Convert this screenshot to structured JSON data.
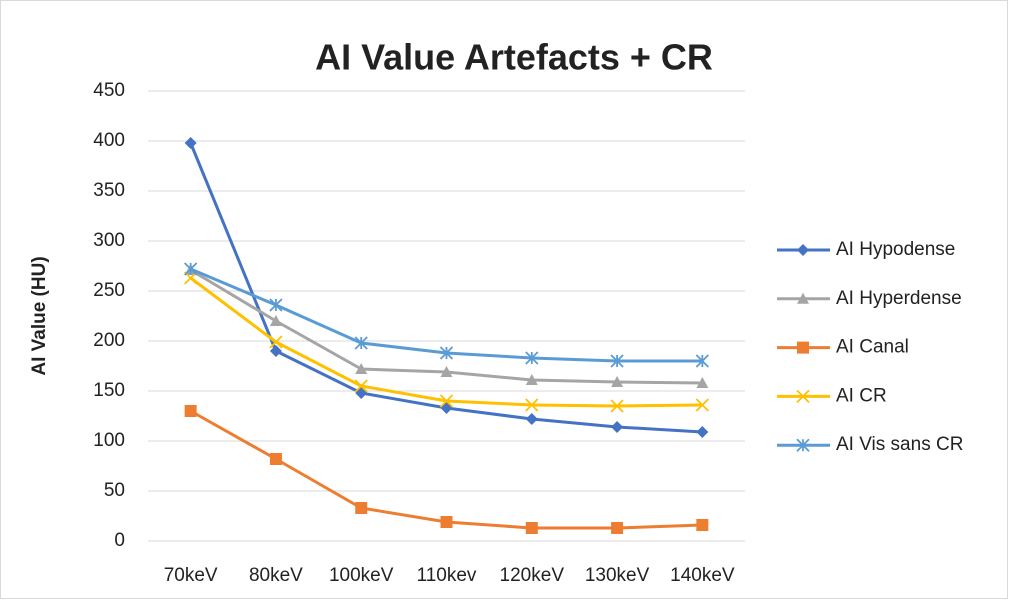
{
  "chart_data": {
    "type": "line",
    "title": "AI Value Artefacts + CR",
    "y_label": "AI Value (HU)",
    "categories": [
      "70keV",
      "80keV",
      "100keV",
      "110kev",
      "120keV",
      "130keV",
      "140keV"
    ],
    "series": [
      {
        "name": "AI Hypodense",
        "color": "#4472c4",
        "marker": "diamond",
        "values": [
          398,
          190,
          148,
          133,
          122,
          114,
          109
        ]
      },
      {
        "name": "AI Hyperdense",
        "color": "#a5a5a5",
        "marker": "triangle",
        "values": [
          271,
          220,
          172,
          169,
          161,
          159,
          158
        ]
      },
      {
        "name": "AI Canal",
        "color": "#ed7d31",
        "marker": "square",
        "values": [
          130,
          82,
          33,
          19,
          13,
          13,
          16
        ]
      },
      {
        "name": "AI CR",
        "color": "#ffc000",
        "marker": "x",
        "values": [
          263,
          199,
          155,
          140,
          136,
          135,
          136
        ]
      },
      {
        "name": "AI Vis sans CR",
        "color": "#5b9bd5",
        "marker": "asterisk",
        "values": [
          272,
          236,
          198,
          188,
          183,
          180,
          180
        ]
      }
    ],
    "ylim": [
      0,
      450
    ],
    "yticks": [
      0,
      50,
      100,
      150,
      200,
      250,
      300,
      350,
      400,
      450
    ],
    "grid": true,
    "legend": "right"
  }
}
